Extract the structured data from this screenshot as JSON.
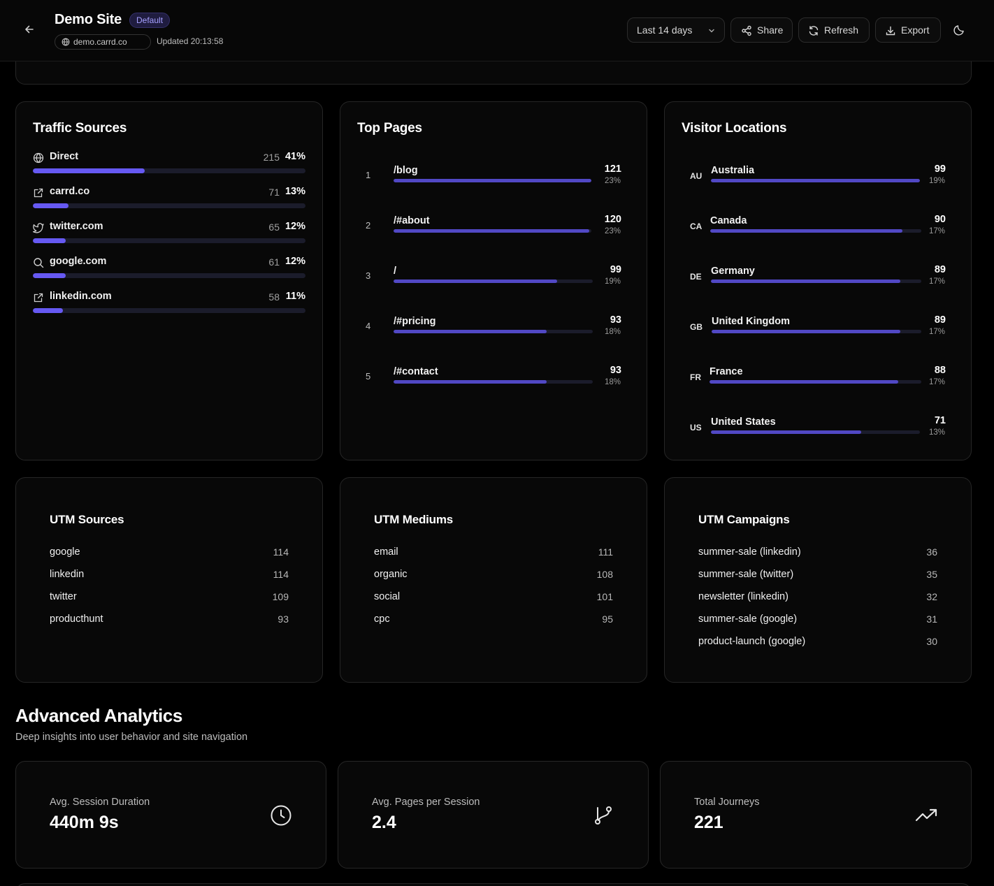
{
  "header": {
    "site_title": "Demo Site",
    "badge": "Default",
    "domain": "demo.carrd.co",
    "updated": "Updated 20:13:58",
    "range_label": "Last 14 days",
    "share_label": "Share",
    "refresh_label": "Refresh",
    "export_label": "Export",
    "icons": [
      "back-arrow-icon",
      "globe-icon",
      "chevron-down-icon",
      "share-icon",
      "refresh-icon",
      "download-icon",
      "moon-icon"
    ]
  },
  "traffic_sources": {
    "title": "Traffic Sources",
    "items": [
      {
        "icon": "globe-icon",
        "name": "Direct",
        "count": "215",
        "pct": "41%",
        "fraction": 0.41
      },
      {
        "icon": "external-link-icon",
        "name": "carrd.co",
        "count": "71",
        "pct": "13%",
        "fraction": 0.13
      },
      {
        "icon": "twitter-icon",
        "name": "twitter.com",
        "count": "65",
        "pct": "12%",
        "fraction": 0.12
      },
      {
        "icon": "search-icon",
        "name": "google.com",
        "count": "61",
        "pct": "12%",
        "fraction": 0.12
      },
      {
        "icon": "external-link-icon",
        "name": "linkedin.com",
        "count": "58",
        "pct": "11%",
        "fraction": 0.11
      }
    ]
  },
  "top_pages": {
    "title": "Top Pages",
    "items": [
      {
        "rank": "1",
        "path": "/blog",
        "count": "121",
        "pct": "23%",
        "fraction": 1.0
      },
      {
        "rank": "2",
        "path": "/#about",
        "count": "120",
        "pct": "23%",
        "fraction": 0.99
      },
      {
        "rank": "3",
        "path": "/",
        "count": "99",
        "pct": "19%",
        "fraction": 0.82
      },
      {
        "rank": "4",
        "path": "/#pricing",
        "count": "93",
        "pct": "18%",
        "fraction": 0.77
      },
      {
        "rank": "5",
        "path": "/#contact",
        "count": "93",
        "pct": "18%",
        "fraction": 0.77
      }
    ]
  },
  "visitor_locations": {
    "title": "Visitor Locations",
    "items": [
      {
        "code": "AU",
        "country": "Australia",
        "count": "99",
        "pct": "19%",
        "fraction": 1.0
      },
      {
        "code": "CA",
        "country": "Canada",
        "count": "90",
        "pct": "17%",
        "fraction": 0.91
      },
      {
        "code": "DE",
        "country": "Germany",
        "count": "89",
        "pct": "17%",
        "fraction": 0.9
      },
      {
        "code": "GB",
        "country": "United Kingdom",
        "count": "89",
        "pct": "17%",
        "fraction": 0.9
      },
      {
        "code": "FR",
        "country": "France",
        "count": "88",
        "pct": "17%",
        "fraction": 0.89
      },
      {
        "code": "US",
        "country": "United States",
        "count": "71",
        "pct": "13%",
        "fraction": 0.72
      }
    ]
  },
  "utm_sources": {
    "title": "UTM Sources",
    "items": [
      {
        "name": "google",
        "value": "114"
      },
      {
        "name": "linkedin",
        "value": "114"
      },
      {
        "name": "twitter",
        "value": "109"
      },
      {
        "name": "producthunt",
        "value": "93"
      }
    ]
  },
  "utm_mediums": {
    "title": "UTM Mediums",
    "items": [
      {
        "name": "email",
        "value": "111"
      },
      {
        "name": "organic",
        "value": "108"
      },
      {
        "name": "social",
        "value": "101"
      },
      {
        "name": "cpc",
        "value": "95"
      }
    ]
  },
  "utm_campaigns": {
    "title": "UTM Campaigns",
    "items": [
      {
        "name": "summer-sale (linkedin)",
        "value": "36"
      },
      {
        "name": "summer-sale (twitter)",
        "value": "35"
      },
      {
        "name": "newsletter (linkedin)",
        "value": "32"
      },
      {
        "name": "summer-sale (google)",
        "value": "31"
      },
      {
        "name": "product-launch (google)",
        "value": "30"
      }
    ]
  },
  "advanced": {
    "title": "Advanced Analytics",
    "subtitle": "Deep insights into user behavior and site navigation",
    "stats": [
      {
        "label": "Avg. Session Duration",
        "value": "440m 9s",
        "icon": "clock-icon"
      },
      {
        "label": "Avg. Pages per Session",
        "value": "2.4",
        "icon": "git-branch-icon"
      },
      {
        "label": "Total Journeys",
        "value": "221",
        "icon": "trending-up-icon"
      }
    ]
  },
  "colors": {
    "accent": "#6659f2",
    "bar": "#5148c4",
    "track": "#1b1c2b",
    "background": "#000000",
    "card": "#080808"
  }
}
